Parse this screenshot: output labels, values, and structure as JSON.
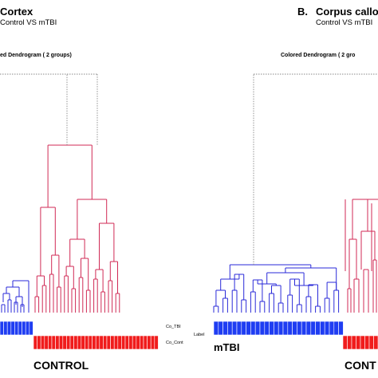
{
  "panels": [
    {
      "id": "A",
      "title": "Cortex",
      "subtitle": "Control VS mTBI",
      "dendrogram_title": "ed Dendrogram ( 2  groups)",
      "row_labels": [
        "Co_TBI",
        "Co_Cont"
      ],
      "label_axis": "Label",
      "group_labels": [
        "CONTROL"
      ]
    },
    {
      "id": "B",
      "letter": "B.",
      "title": "Corpus callo",
      "subtitle": "Control VS mTBI",
      "dendrogram_title": "Colored Dendrogram ( 2  gro",
      "group_labels": [
        "mTBI",
        "CONT"
      ]
    }
  ],
  "colors": {
    "group_mtbi": "#2a2ad8",
    "group_control": "#d02a55",
    "bar_mtbi": "#1f3df2",
    "bar_control": "#f01c1c",
    "root_link": "#8a8a8a"
  }
}
